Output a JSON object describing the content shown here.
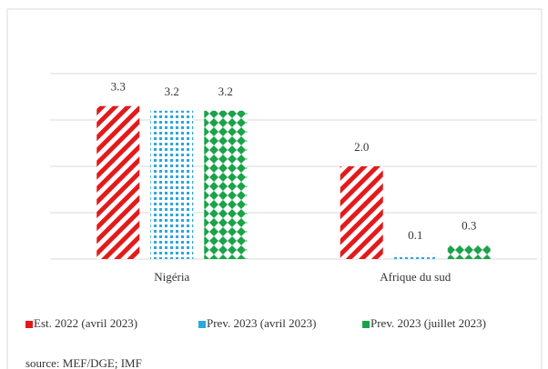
{
  "chart_data": {
    "type": "bar",
    "categories": [
      "Nigéria",
      "Afrique du sud"
    ],
    "series": [
      {
        "name": "Est. 2022 (avril 2023)",
        "color": "#e31a1c",
        "values": [
          3.3,
          2.0
        ],
        "value_labels": [
          "3.3",
          "2.0"
        ]
      },
      {
        "name": "Prev. 2023 (avril 2023)",
        "color": "#29a8e0",
        "values": [
          3.2,
          0.1
        ],
        "value_labels": [
          "3.2",
          "0.1"
        ]
      },
      {
        "name": "Prev. 2023 (juillet 2023)",
        "color": "#1aa34a",
        "values": [
          3.2,
          0.3
        ],
        "value_labels": [
          "3.2",
          "0.3"
        ]
      }
    ],
    "ylim": [
      0,
      4
    ],
    "yticks": [
      0,
      1,
      2,
      3,
      4
    ],
    "grid": true,
    "legend": "bottom",
    "source": "source: MEF/DGE; IMF"
  }
}
